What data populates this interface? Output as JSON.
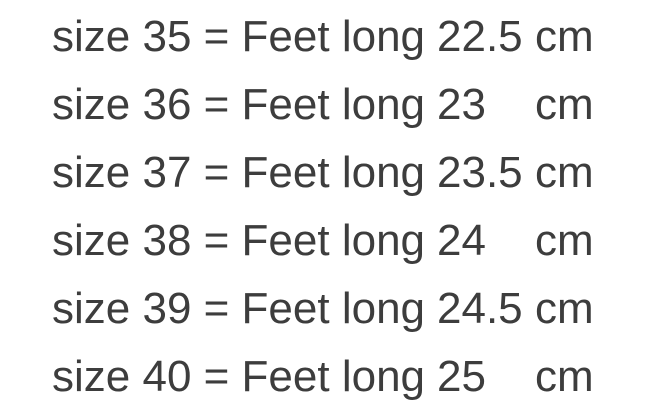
{
  "page": {
    "background_color": "#ffffff",
    "text_color": "#3d3d3d"
  },
  "chart_data": {
    "type": "table",
    "title": "",
    "columns": [
      "size",
      "feet_long_cm"
    ],
    "rows": [
      {
        "size": 35,
        "feet_long_cm": 22.5
      },
      {
        "size": 36,
        "feet_long_cm": 23
      },
      {
        "size": 37,
        "feet_long_cm": 23.5
      },
      {
        "size": 38,
        "feet_long_cm": 24
      },
      {
        "size": 39,
        "feet_long_cm": 24.5
      },
      {
        "size": 40,
        "feet_long_cm": 25
      }
    ]
  },
  "size_chart": {
    "rows": [
      {
        "label": "size 35 = Feet long",
        "value": "22.5",
        "unit": "cm"
      },
      {
        "label": "size 36 = Feet long",
        "value": "23",
        "unit": "cm"
      },
      {
        "label": "size 37 = Feet long",
        "value": "23.5",
        "unit": "cm"
      },
      {
        "label": "size 38 = Feet long",
        "value": "24",
        "unit": "cm"
      },
      {
        "label": "size 39 = Feet long",
        "value": "24.5",
        "unit": "cm"
      },
      {
        "label": "size 40 = Feet long",
        "value": "25",
        "unit": "cm"
      }
    ]
  }
}
